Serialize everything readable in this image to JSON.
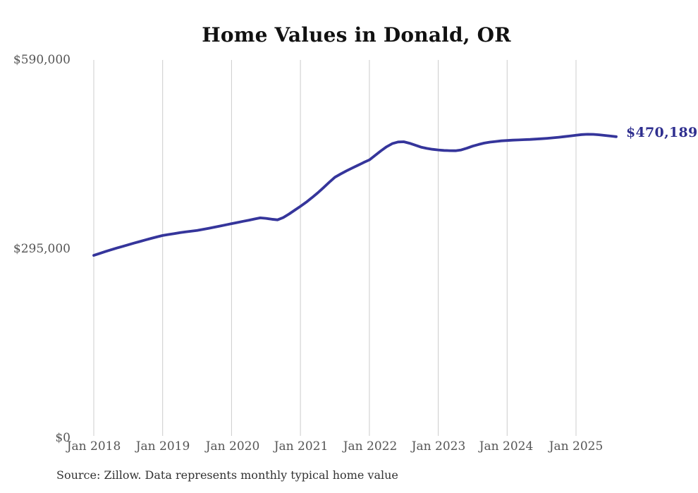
{
  "chart": {
    "title": "Home Values in Donald, OR",
    "end_label": "$470,189",
    "source": "Source: Zillow. Data represents monthly typical home value",
    "colors": {
      "line": "#35359b",
      "end_label_text": "#2f2f8f",
      "grid": "#cccccc",
      "axis_text": "#555555",
      "title_text": "#111111",
      "source_text": "#333333",
      "background": "#ffffff"
    }
  },
  "chart_data": {
    "type": "line",
    "title": "Home Values in Donald, OR",
    "unit": "USD",
    "frequency": "monthly",
    "start_month": "2018-01",
    "end_month": "2025-08",
    "final_value": 470189,
    "final_label": "$470,189",
    "ylim": [
      0,
      590000
    ],
    "grid": "vertical-only",
    "legend": "none",
    "y_tick_labels": [
      "$0",
      "$295,000",
      "$590,000"
    ],
    "y_tick_values": [
      0,
      295000,
      590000
    ],
    "x_tick_labels": [
      "Jan 2018",
      "Jan 2019",
      "Jan 2020",
      "Jan 2021",
      "Jan 2022",
      "Jan 2023",
      "Jan 2024",
      "Jan 2025"
    ],
    "values": [
      285000,
      288000,
      290900,
      293700,
      296400,
      299000,
      301500,
      304100,
      306600,
      309100,
      311500,
      313800,
      316000,
      317600,
      319000,
      320400,
      321700,
      322900,
      324000,
      325600,
      327300,
      329000,
      330800,
      332600,
      334500,
      336300,
      338100,
      339900,
      341800,
      343500,
      342800,
      341500,
      340500,
      344000,
      349500,
      355500,
      361500,
      368000,
      375000,
      382500,
      390500,
      399000,
      407000,
      412000,
      416800,
      421300,
      425600,
      429900,
      434000,
      441000,
      448000,
      454500,
      459500,
      462000,
      462300,
      460000,
      457000,
      454000,
      452000,
      450500,
      449500,
      448800,
      448400,
      448300,
      449500,
      452300,
      455500,
      458000,
      460200,
      461800,
      462800,
      463700,
      464300,
      464800,
      465200,
      465600,
      466000,
      466500,
      467000,
      467700,
      468500,
      469400,
      470400,
      471500,
      472600,
      473500,
      474000,
      473900,
      473200,
      472200,
      471200,
      470189
    ]
  }
}
